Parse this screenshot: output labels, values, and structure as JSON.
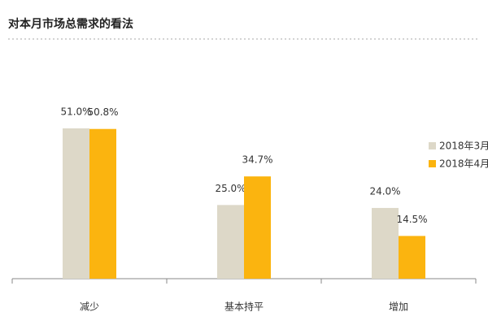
{
  "chart_data": {
    "type": "bar",
    "title": "对本月市场总需求的看法",
    "categories": [
      "减少",
      "基本持平",
      "增加"
    ],
    "series": [
      {
        "name": "2018年3月",
        "color": "#ddd8c8",
        "values": [
          51.0,
          25.0,
          24.0
        ],
        "value_labels": [
          "51.0%",
          "25.0%",
          "24.0%"
        ]
      },
      {
        "name": "2018年4月",
        "color": "#fbb40f",
        "values": [
          50.8,
          34.7,
          14.5
        ],
        "value_labels": [
          "50.8%",
          "34.7%",
          "14.5%"
        ]
      }
    ],
    "grid": false,
    "legend": "right"
  }
}
